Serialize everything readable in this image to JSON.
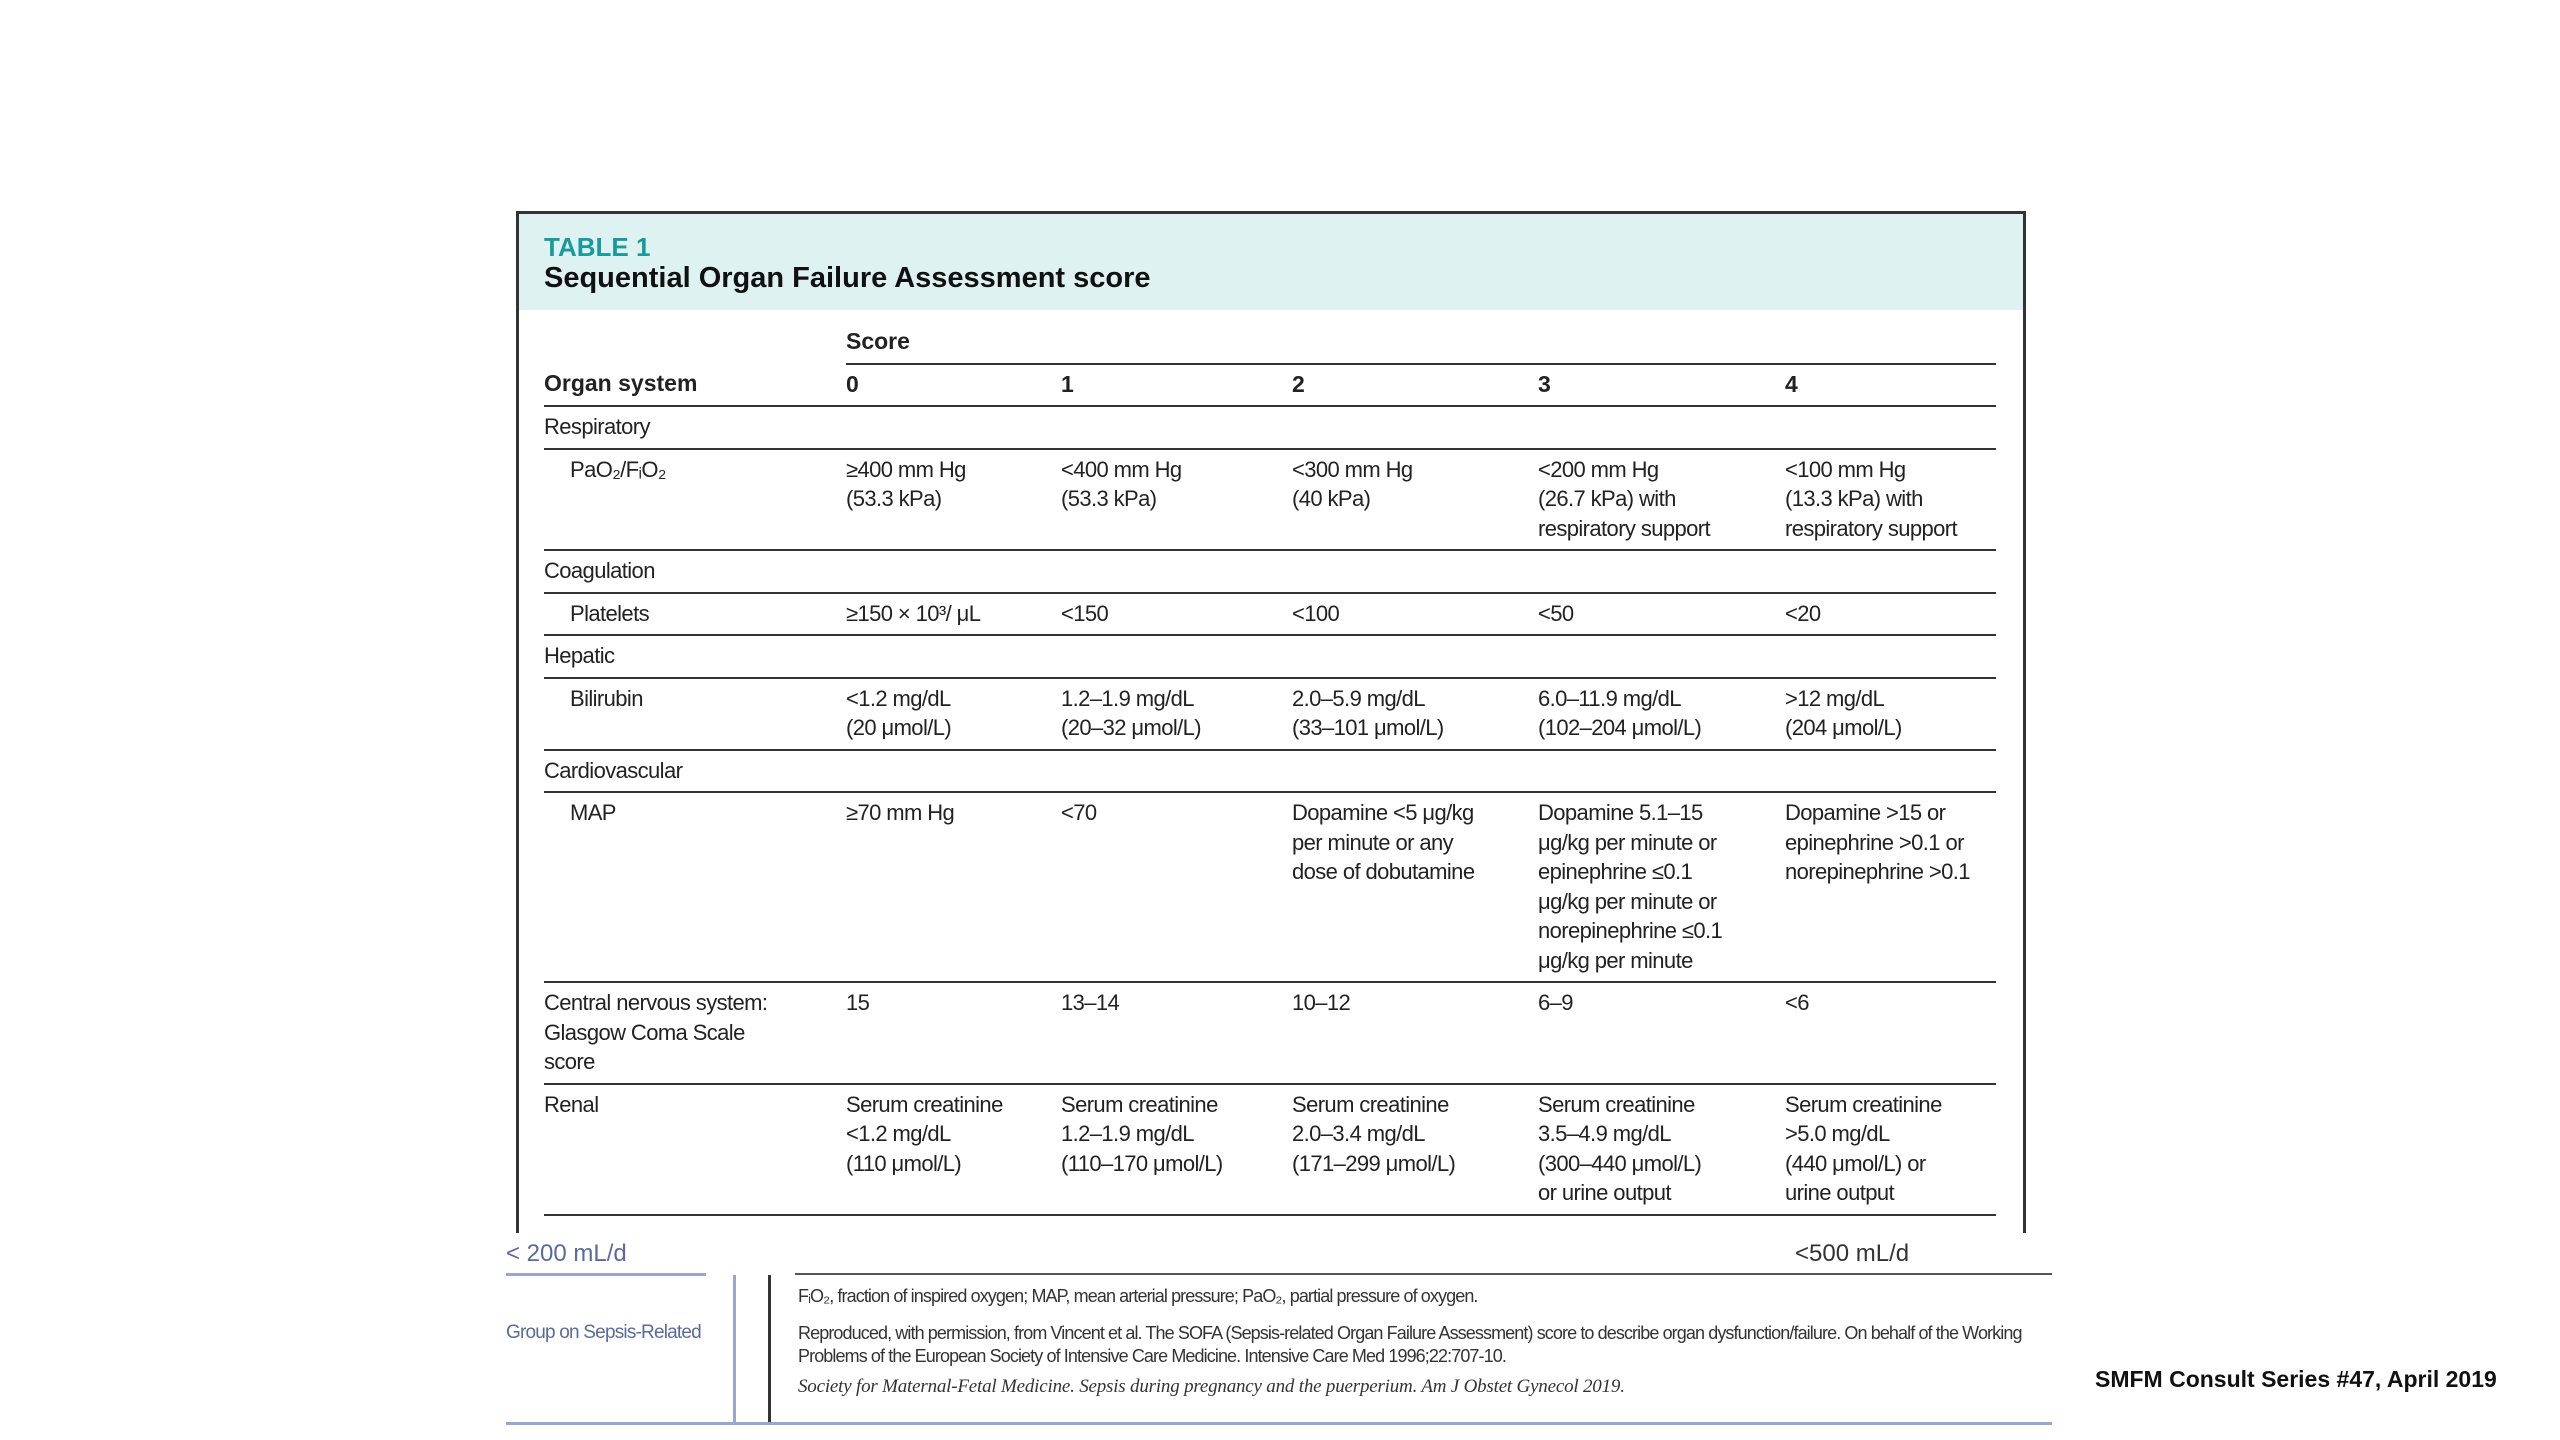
{
  "slide": {
    "caption": "SMFM Consult Series #47, April 2019"
  },
  "table": {
    "label": "TABLE 1",
    "title": "Sequential Organ Failure Assessment score",
    "score_header": "Score",
    "columns": [
      "Organ system",
      "0",
      "1",
      "2",
      "3",
      "4"
    ],
    "rows": [
      {
        "system": "Respiratory",
        "items": [
          {
            "name": "PaO₂/FᵢO₂",
            "scores": [
              "≥400 mm Hg\n(53.3 kPa)",
              "<400 mm Hg\n(53.3 kPa)",
              "<300 mm Hg\n(40 kPa)",
              "<200 mm Hg\n(26.7 kPa) with\nrespiratory support",
              "<100 mm Hg\n(13.3 kPa) with\nrespiratory support"
            ]
          }
        ]
      },
      {
        "system": "Coagulation",
        "items": [
          {
            "name": "Platelets",
            "scores": [
              "≥150 × 10³/ μL",
              "<150",
              "<100",
              "<50",
              "<20"
            ]
          }
        ]
      },
      {
        "system": "Hepatic",
        "items": [
          {
            "name": "Bilirubin",
            "scores": [
              "<1.2 mg/dL\n(20 μmol/L)",
              "1.2–1.9 mg/dL\n(20–32 μmol/L)",
              "2.0–5.9 mg/dL\n(33–101 μmol/L)",
              "6.0–11.9 mg/dL\n(102–204 μmol/L)",
              ">12 mg/dL\n(204 μmol/L)"
            ]
          }
        ]
      },
      {
        "system": "Cardiovascular",
        "items": [
          {
            "name": "MAP",
            "scores": [
              "≥70 mm Hg",
              "<70",
              "Dopamine <5 μg/kg\nper minute or any\ndose of dobutamine",
              "Dopamine 5.1–15\nμg/kg per minute or\nepinephrine ≤0.1\nμg/kg per minute or\nnorepinephrine ≤0.1\nμg/kg per minute",
              "Dopamine >15 or\nepinephrine >0.1 or\nnorepinephrine >0.1"
            ]
          }
        ]
      },
      {
        "name": "Central nervous system:\nGlasgow Coma Scale\nscore",
        "scores": [
          "15",
          "13–14",
          "10–12",
          "6–9",
          "<6"
        ]
      },
      {
        "name": "Renal",
        "scores": [
          "Serum creatinine\n<1.2 mg/dL\n(110 μmol/L)",
          "Serum creatinine\n1.2–1.9 mg/dL\n(110–170 μmol/L)",
          "Serum creatinine\n2.0–3.4 mg/dL\n(171–299 μmol/L)",
          "Serum creatinine\n3.5–4.9 mg/dL\n(300–440 μmol/L)\nor urine output",
          "Serum creatinine\n>5.0 mg/dL\n(440 μmol/L) or\nurine output"
        ]
      }
    ]
  },
  "fragments": [
    "< 200 mL/d",
    "<500 mL/d",
    "Group on Sepsis-Related"
  ],
  "footnotes": [
    "FᵢO₂, fraction of inspired oxygen; MAP, mean arterial pressure; PaO₂, partial pressure of oxygen.",
    "Reproduced, with permission, from Vincent et al. The SOFA (Sepsis-related Organ Failure Assessment) score to describe organ dysfunction/failure. On behalf of the Working",
    "Problems of the European Society of Intensive Care Medicine. Intensive Care Med 1996;22:707-10.",
    "Society for Maternal-Fetal Medicine. Sepsis during pregnancy and the puerperium. Am J Obstet Gynecol 2019."
  ]
}
